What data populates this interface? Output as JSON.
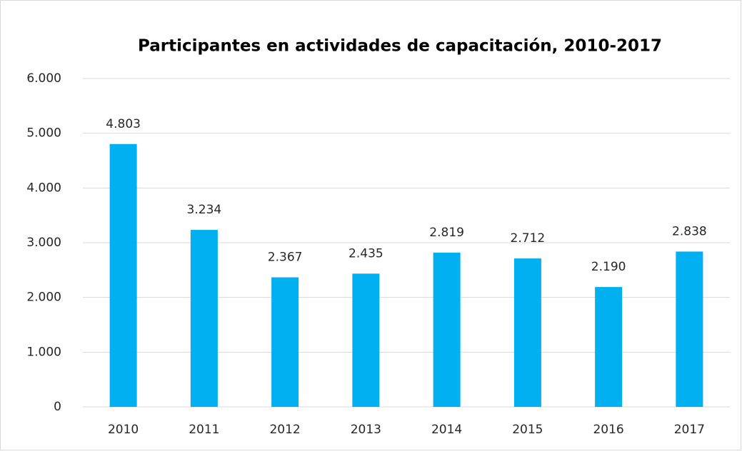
{
  "chart_data": {
    "type": "bar",
    "title": "Participantes en actividades de capacitación, 2010-2017",
    "categories": [
      "2010",
      "2011",
      "2012",
      "2013",
      "2014",
      "2015",
      "2016",
      "2017"
    ],
    "values": [
      4803,
      3234,
      2367,
      2435,
      2819,
      2712,
      2190,
      2838
    ],
    "value_labels": [
      "4.803",
      "3.234",
      "2.367",
      "2.435",
      "2.819",
      "2.712",
      "2.190",
      "2.838"
    ],
    "color": "#00b0f0",
    "ylim": [
      0,
      6000
    ],
    "yticks": [
      0,
      {
        "value": 1000,
        "label": "1.000"
      },
      {
        "value": 2000,
        "label": "2.000"
      },
      {
        "value": 3000,
        "label": "3.000"
      },
      {
        "value": 4000,
        "label": "4.000"
      },
      {
        "value": 5000,
        "label": "5.000"
      },
      {
        "value": 6000,
        "label": "6.000"
      }
    ],
    "grid": true
  }
}
